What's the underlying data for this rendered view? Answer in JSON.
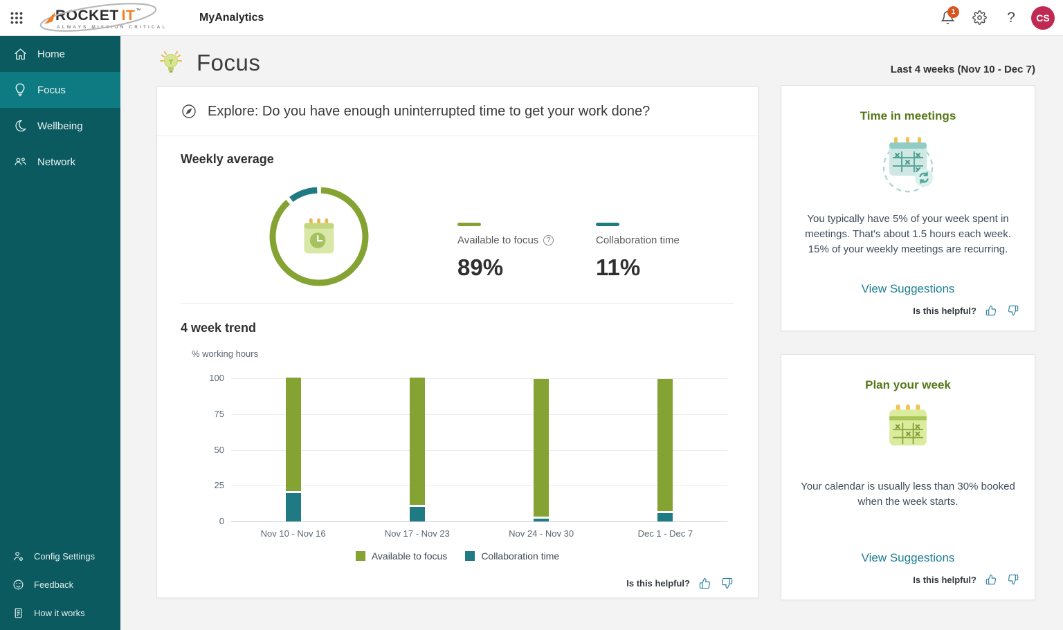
{
  "topbar": {
    "app_title": "MyAnalytics",
    "logo": {
      "word1": "ROCKET",
      "word2": "IT",
      "tm": "™",
      "tagline": "ALWAYS MISSION CRITICAL"
    },
    "notification_count": "1",
    "help_glyph": "?",
    "avatar_initials": "CS"
  },
  "sidebar": {
    "items": [
      {
        "label": "Home"
      },
      {
        "label": "Focus"
      },
      {
        "label": "Wellbeing"
      },
      {
        "label": "Network"
      }
    ],
    "footer_items": [
      {
        "label": "Config Settings"
      },
      {
        "label": "Feedback"
      },
      {
        "label": "How it works"
      }
    ]
  },
  "page": {
    "title": "Focus",
    "date_range": "Last 4 weeks (Nov 10 - Dec 7)"
  },
  "main": {
    "explore_question": "Explore: Do you have enough uninterrupted time to get your work done?",
    "weekly_average": {
      "heading": "Weekly average",
      "focus_label": "Available to focus",
      "focus_value": "89%",
      "collab_label": "Collaboration time",
      "collab_value": "11%"
    },
    "trend_heading": "4 week trend",
    "trend_axis_label": "% working hours",
    "info_glyph": "?",
    "helpful_label": "Is this helpful?"
  },
  "cards": [
    {
      "title": "Time in meetings",
      "body": "You typically have 5% of your week spent in meetings. That's about 1.5 hours each week. 15% of your weekly meetings are recurring.",
      "link_label": "View Suggestions",
      "helpful_label": "Is this helpful?"
    },
    {
      "title": "Plan your week",
      "body": "Your calendar is usually less than 30% booked when the week starts.",
      "link_label": "View Suggestions",
      "helpful_label": "Is this helpful?"
    }
  ],
  "colors": {
    "focus_green": "#84a333",
    "collab_teal": "#1f7a83",
    "sidebar_bg": "#0a5a60",
    "sidebar_selected": "#0e7a82",
    "link_teal": "#1d7e92",
    "card_title_green": "#567718",
    "badge_orange": "#d9541f",
    "avatar_crimson": "#c02a52"
  },
  "chart_data": [
    {
      "type": "pie",
      "subtype": "donut",
      "title": "Weekly average",
      "slices": [
        {
          "label": "Available to focus",
          "value": 89,
          "color": "#84a333"
        },
        {
          "label": "Collaboration time",
          "value": 11,
          "color": "#1f7a83"
        }
      ]
    },
    {
      "type": "bar",
      "stacked": true,
      "title": "4 week trend",
      "ylabel": "% working hours",
      "ylim": [
        0,
        100
      ],
      "yticks": [
        0,
        25,
        50,
        75,
        100
      ],
      "grid": true,
      "legend_position": "bottom",
      "categories": [
        "Nov 10 - Nov 16",
        "Nov 17 - Nov 23",
        "Nov 24 - Nov 30",
        "Dec 1 - Dec 7"
      ],
      "series": [
        {
          "name": "Available to focus",
          "color": "#84a333",
          "values": [
            79,
            89,
            96,
            92
          ]
        },
        {
          "name": "Collaboration time",
          "color": "#1f7a83",
          "values": [
            20,
            10,
            2,
            6
          ]
        }
      ]
    }
  ]
}
